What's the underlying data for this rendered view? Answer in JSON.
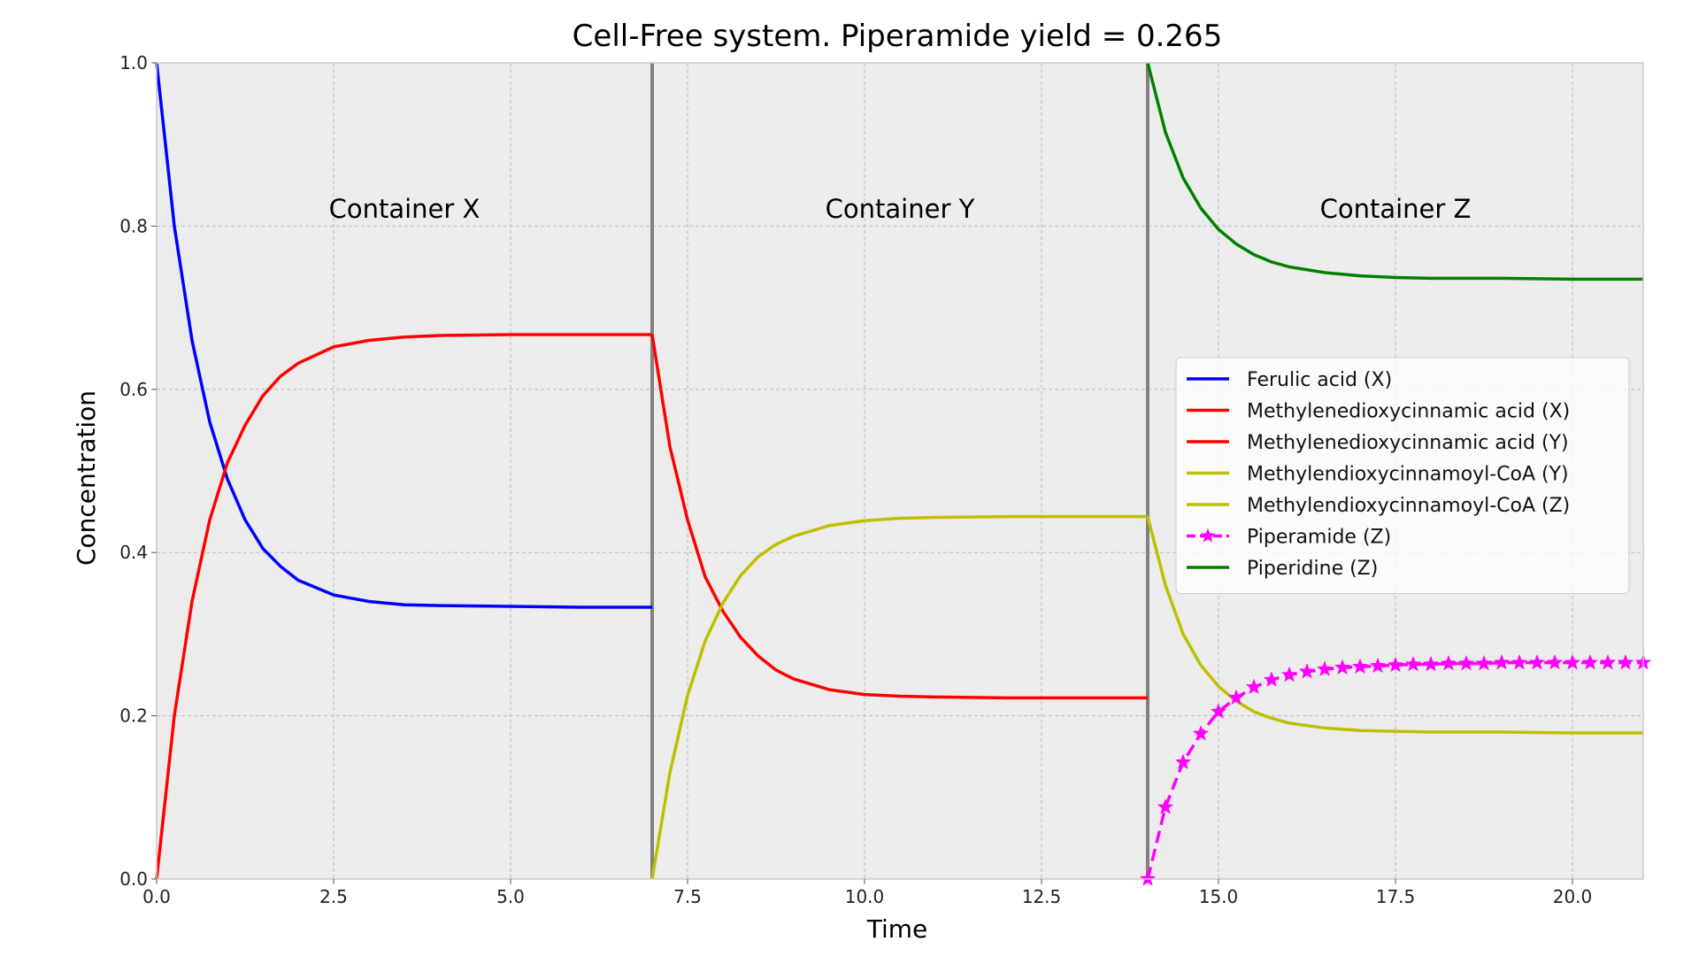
{
  "chart_data": {
    "type": "line",
    "title": "Cell-Free system. Piperamide yield = 0.265",
    "xlabel": "Time",
    "ylabel": "Concentration",
    "xlim": [
      0,
      21
    ],
    "ylim": [
      0,
      1.0
    ],
    "xticks": [
      0.0,
      2.5,
      5.0,
      7.5,
      10.0,
      12.5,
      15.0,
      17.5,
      20.0
    ],
    "xtick_labels": [
      "0.0",
      "2.5",
      "5.0",
      "7.5",
      "10.0",
      "12.5",
      "15.0",
      "17.5",
      "20.0"
    ],
    "yticks": [
      0.0,
      0.2,
      0.4,
      0.6,
      0.8,
      1.0
    ],
    "ytick_labels": [
      "0.0",
      "0.2",
      "0.4",
      "0.6",
      "0.8",
      "1.0"
    ],
    "grid": true,
    "legend_position": "center-right",
    "background_color": "#ececec",
    "container_boundaries": [
      7,
      14
    ],
    "annotations": [
      {
        "text": "Container X",
        "x": 3.5,
        "y": 0.81
      },
      {
        "text": "Container Y",
        "x": 10.5,
        "y": 0.81
      },
      {
        "text": "Container Z",
        "x": 17.5,
        "y": 0.81
      }
    ],
    "series": [
      {
        "name": "Ferulic acid (X)",
        "color": "#0000ff",
        "style": "solid",
        "marker": "none",
        "x": [
          0,
          0.25,
          0.5,
          0.75,
          1.0,
          1.25,
          1.5,
          1.75,
          2.0,
          2.5,
          3.0,
          3.5,
          4.0,
          5.0,
          6.0,
          7.0
        ],
        "y": [
          1.0,
          0.8,
          0.66,
          0.56,
          0.49,
          0.44,
          0.405,
          0.383,
          0.366,
          0.348,
          0.34,
          0.336,
          0.335,
          0.334,
          0.333,
          0.333
        ]
      },
      {
        "name": "Methylenedioxycinnamic acid (X)",
        "color": "#ff0000",
        "style": "solid",
        "marker": "none",
        "x": [
          0,
          0.25,
          0.5,
          0.75,
          1.0,
          1.25,
          1.5,
          1.75,
          2.0,
          2.5,
          3.0,
          3.5,
          4.0,
          5.0,
          6.0,
          7.0
        ],
        "y": [
          0.0,
          0.2,
          0.34,
          0.44,
          0.51,
          0.556,
          0.592,
          0.616,
          0.632,
          0.652,
          0.66,
          0.664,
          0.666,
          0.667,
          0.667,
          0.667
        ]
      },
      {
        "name": "Methylenedioxycinnamic acid (Y)",
        "color": "#ff0000",
        "style": "solid",
        "marker": "none",
        "x": [
          7.0,
          7.25,
          7.5,
          7.75,
          8.0,
          8.25,
          8.5,
          8.75,
          9.0,
          9.5,
          10.0,
          10.5,
          11.0,
          12.0,
          13.0,
          14.0
        ],
        "y": [
          0.667,
          0.53,
          0.44,
          0.37,
          0.328,
          0.296,
          0.273,
          0.256,
          0.245,
          0.232,
          0.226,
          0.224,
          0.223,
          0.222,
          0.222,
          0.222
        ]
      },
      {
        "name": "Methylendioxycinnamoyl-CoA (Y)",
        "color": "#bfbf00",
        "style": "solid",
        "marker": "none",
        "x": [
          7.0,
          7.25,
          7.5,
          7.75,
          8.0,
          8.25,
          8.5,
          8.75,
          9.0,
          9.5,
          10.0,
          10.5,
          11.0,
          12.0,
          13.0,
          14.0
        ],
        "y": [
          0.0,
          0.13,
          0.225,
          0.292,
          0.338,
          0.372,
          0.395,
          0.41,
          0.42,
          0.433,
          0.439,
          0.442,
          0.443,
          0.444,
          0.444,
          0.444
        ]
      },
      {
        "name": "Methylendioxycinnamoyl-CoA (Z)",
        "color": "#bfbf00",
        "style": "solid",
        "marker": "none",
        "x": [
          14.0,
          14.25,
          14.5,
          14.75,
          15.0,
          15.25,
          15.5,
          15.75,
          16.0,
          16.5,
          17.0,
          17.5,
          18.0,
          19.0,
          20.0,
          21.0
        ],
        "y": [
          0.444,
          0.36,
          0.3,
          0.262,
          0.236,
          0.218,
          0.205,
          0.197,
          0.191,
          0.185,
          0.182,
          0.181,
          0.18,
          0.18,
          0.179,
          0.179
        ]
      },
      {
        "name": "Piperamide (Z)",
        "color": "#ff00ff",
        "style": "dashed",
        "marker": "star",
        "x": [
          14.0,
          14.25,
          14.5,
          14.75,
          15.0,
          15.25,
          15.5,
          15.75,
          16.0,
          16.25,
          16.5,
          16.75,
          17.0,
          17.25,
          17.5,
          17.75,
          18.0,
          18.25,
          18.5,
          18.75,
          19.0,
          19.25,
          19.5,
          19.75,
          20.0,
          20.25,
          20.5,
          20.75,
          21.0
        ],
        "y": [
          0.0,
          0.088,
          0.143,
          0.178,
          0.205,
          0.222,
          0.235,
          0.244,
          0.25,
          0.254,
          0.257,
          0.259,
          0.26,
          0.261,
          0.262,
          0.263,
          0.263,
          0.264,
          0.264,
          0.264,
          0.265,
          0.265,
          0.265,
          0.265,
          0.265,
          0.265,
          0.265,
          0.265,
          0.265
        ]
      },
      {
        "name": "Piperidine (Z)",
        "color": "#008000",
        "style": "solid",
        "marker": "none",
        "x": [
          14.0,
          14.25,
          14.5,
          14.75,
          15.0,
          15.25,
          15.5,
          15.75,
          16.0,
          16.5,
          17.0,
          17.5,
          18.0,
          19.0,
          20.0,
          21.0
        ],
        "y": [
          1.0,
          0.915,
          0.859,
          0.822,
          0.796,
          0.778,
          0.765,
          0.756,
          0.75,
          0.743,
          0.739,
          0.737,
          0.736,
          0.736,
          0.735,
          0.735
        ]
      }
    ]
  }
}
